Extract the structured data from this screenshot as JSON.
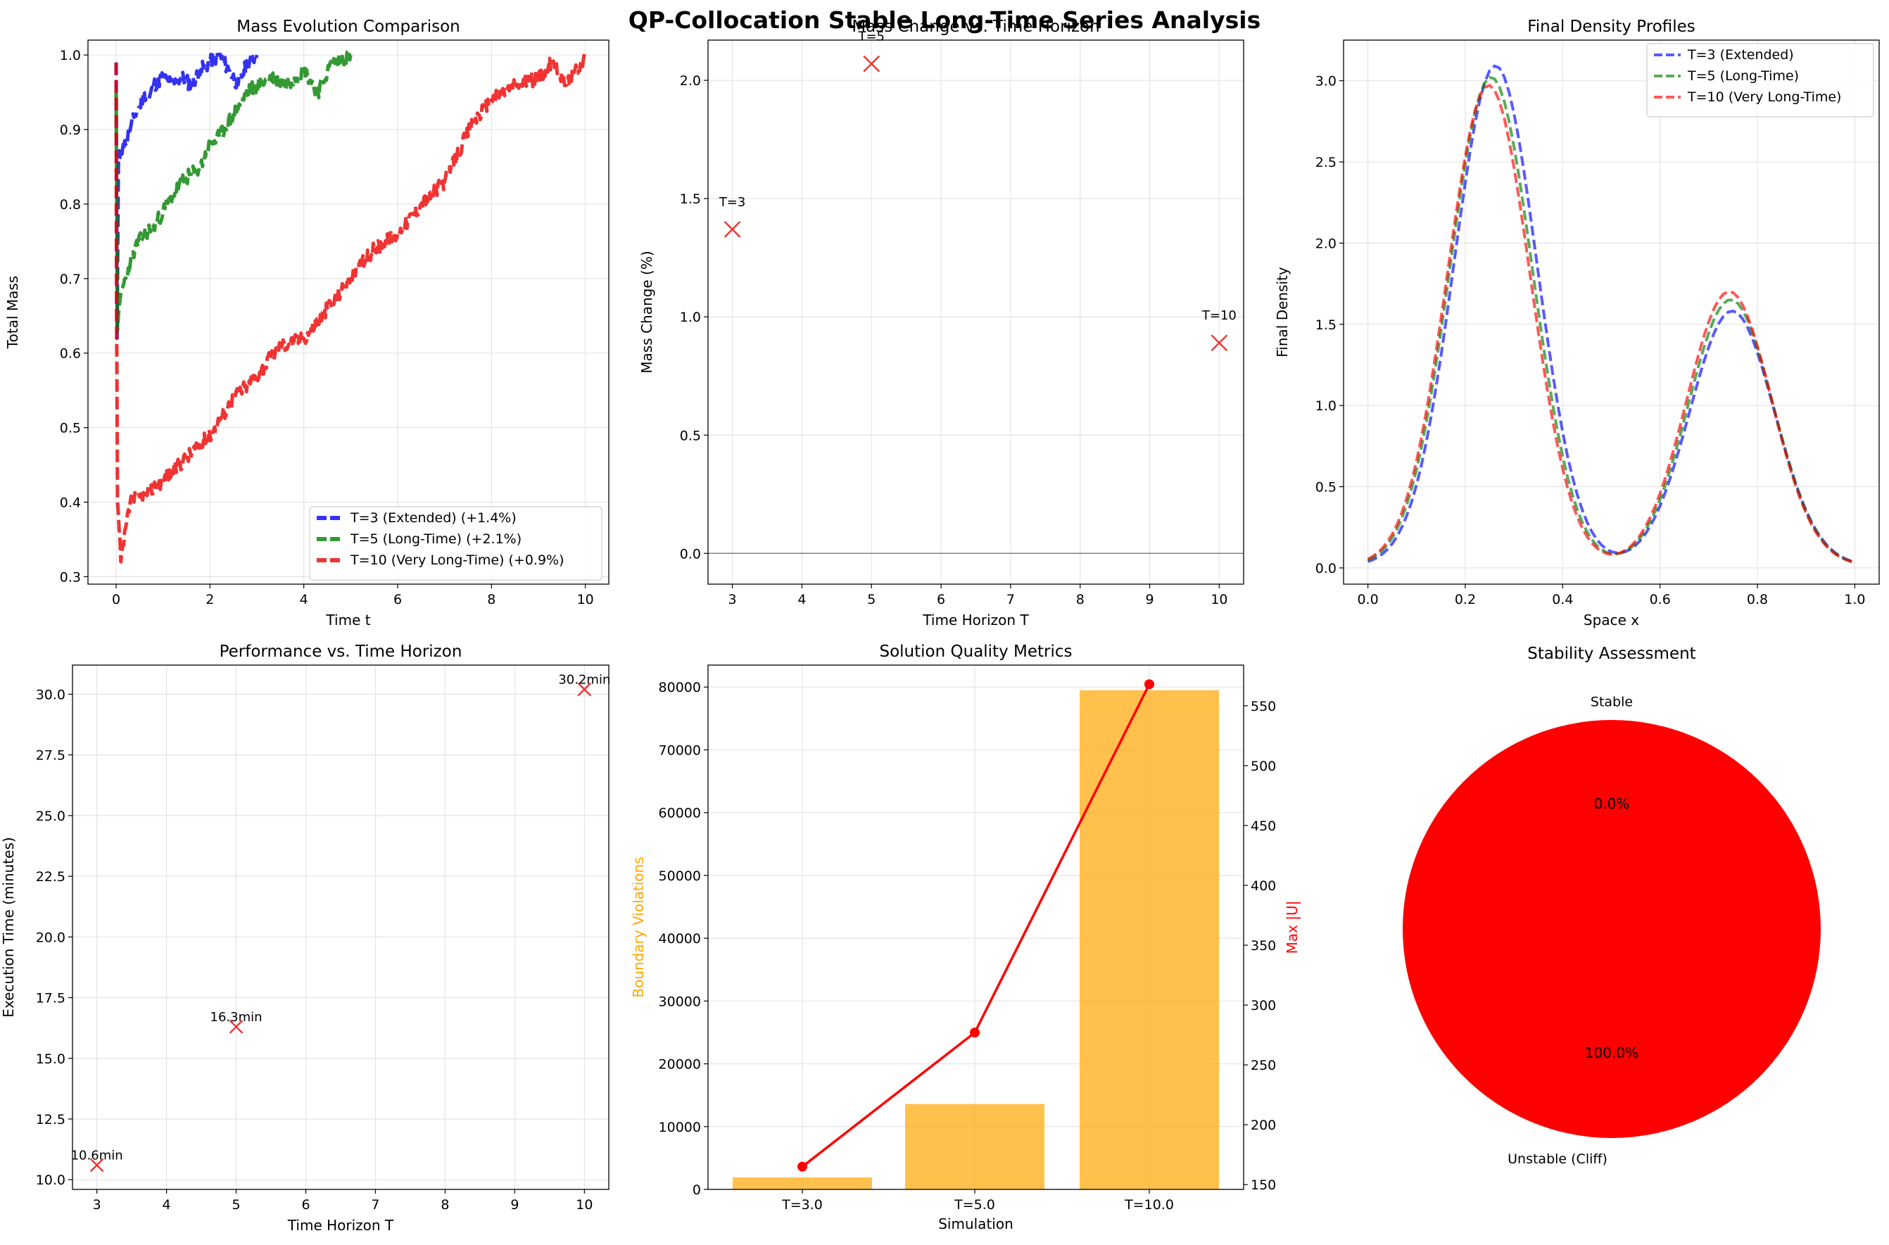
{
  "figure": {
    "suptitle": "QP-Collocation Stable Long-Time Series Analysis"
  },
  "chart_data": [
    {
      "id": "mass",
      "type": "line",
      "title": "Mass Evolution Comparison",
      "xlabel": "Time t",
      "ylabel": "Total Mass",
      "xlim": [
        -0.6,
        10.5
      ],
      "ylim": [
        0.29,
        1.02
      ],
      "xticks": [
        0,
        2,
        4,
        6,
        8,
        10
      ],
      "yticks": [
        0.3,
        0.4,
        0.5,
        0.6,
        0.7,
        0.8,
        0.9,
        1.0
      ],
      "grid": true,
      "legend": "lower right",
      "series": [
        {
          "name": "T=3 (Extended) (+1.4%)",
          "color": "#0000ee",
          "x": [
            0,
            0.02,
            0.05,
            0.1,
            0.15,
            0.2,
            0.3,
            0.4,
            0.5,
            0.6,
            0.7,
            0.8,
            1.0,
            1.2,
            1.4,
            1.6,
            1.8,
            2.0,
            2.2,
            2.4,
            2.6,
            2.8,
            3.0
          ],
          "y": [
            0.99,
            0.62,
            0.86,
            0.87,
            0.88,
            0.88,
            0.9,
            0.92,
            0.93,
            0.95,
            0.94,
            0.96,
            0.97,
            0.96,
            0.97,
            0.96,
            0.98,
            0.99,
            1.0,
            0.98,
            0.96,
            0.99,
            1.0
          ]
        },
        {
          "name": "T=5 (Long-Time) (+2.1%)",
          "color": "#008000",
          "x": [
            0,
            0.03,
            0.1,
            0.2,
            0.3,
            0.4,
            0.6,
            0.8,
            1.0,
            1.2,
            1.4,
            1.6,
            1.8,
            2.0,
            2.2,
            2.5,
            2.8,
            3.0,
            3.3,
            3.6,
            4.0,
            4.3,
            4.6,
            5.0
          ],
          "y": [
            0.95,
            0.63,
            0.68,
            0.7,
            0.72,
            0.74,
            0.76,
            0.77,
            0.79,
            0.81,
            0.83,
            0.84,
            0.85,
            0.88,
            0.89,
            0.92,
            0.95,
            0.96,
            0.97,
            0.96,
            0.98,
            0.95,
            0.99,
            1.0
          ]
        },
        {
          "name": "T=10 (Very Long-Time) (+0.9%)",
          "color": "#ee0000",
          "x": [
            0,
            0.01,
            0.03,
            0.1,
            0.3,
            0.6,
            1.0,
            1.5,
            2.0,
            2.5,
            3.0,
            3.5,
            4.0,
            4.5,
            5.0,
            5.5,
            6.0,
            6.5,
            7.0,
            7.3,
            7.6,
            8.0,
            8.5,
            9.0,
            9.3,
            9.6,
            10.0
          ],
          "y": [
            0.99,
            0.65,
            0.4,
            0.32,
            0.4,
            0.41,
            0.43,
            0.46,
            0.49,
            0.54,
            0.57,
            0.61,
            0.62,
            0.66,
            0.7,
            0.74,
            0.76,
            0.8,
            0.83,
            0.87,
            0.91,
            0.94,
            0.96,
            0.97,
            0.99,
            0.96,
            1.0
          ]
        }
      ]
    },
    {
      "id": "mass_change",
      "type": "scatter",
      "title": "Mass Change vs. Time Horizon",
      "xlabel": "Time Horizon T",
      "ylabel": "Mass Change (%)",
      "xlim": [
        2.65,
        10.35
      ],
      "ylim": [
        -0.13,
        2.17
      ],
      "xticks": [
        3,
        4,
        5,
        6,
        7,
        8,
        9,
        10
      ],
      "yticks": [
        0.0,
        0.5,
        1.0,
        1.5,
        2.0
      ],
      "grid": true,
      "reference_line_y": 0.0,
      "points": [
        {
          "x": 3,
          "y": 1.37,
          "label": "T=3"
        },
        {
          "x": 5,
          "y": 2.07,
          "label": "T=5"
        },
        {
          "x": 10,
          "y": 0.89,
          "label": "T=10"
        }
      ]
    },
    {
      "id": "density",
      "type": "line",
      "title": "Final Density Profiles",
      "xlabel": "Space x",
      "ylabel": "Final Density",
      "xlim": [
        -0.05,
        1.05
      ],
      "ylim": [
        -0.1,
        3.25
      ],
      "xticks": [
        0.0,
        0.2,
        0.4,
        0.6,
        0.8,
        1.0
      ],
      "yticks": [
        0.0,
        0.5,
        1.0,
        1.5,
        2.0,
        2.5,
        3.0
      ],
      "grid": true,
      "legend": "upper right",
      "series": [
        {
          "name": "T=3 (Extended)",
          "color": "#0000ff",
          "peak1": 3.08,
          "peak2": 1.57,
          "mu1": 0.262,
          "mu2": 0.748
        },
        {
          "name": "T=5 (Long-Time)",
          "color": "#008000",
          "peak1": 3.01,
          "peak2": 1.64,
          "mu1": 0.253,
          "mu2": 0.745
        },
        {
          "name": "T=10 (Very Long-Time)",
          "color": "#ff0000",
          "peak1": 2.96,
          "peak2": 1.69,
          "mu1": 0.248,
          "mu2": 0.742
        }
      ]
    },
    {
      "id": "performance",
      "type": "scatter",
      "title": "Performance vs. Time Horizon",
      "xlabel": "Time Horizon T",
      "ylabel": "Execution Time (minutes)",
      "xlim": [
        2.65,
        10.35
      ],
      "ylim": [
        9.6,
        31.2
      ],
      "xticks": [
        3,
        4,
        5,
        6,
        7,
        8,
        9,
        10
      ],
      "yticks": [
        10.0,
        12.5,
        15.0,
        17.5,
        20.0,
        22.5,
        25.0,
        27.5,
        30.0
      ],
      "grid": true,
      "points": [
        {
          "x": 3,
          "y": 10.6,
          "label": "10.6min"
        },
        {
          "x": 5,
          "y": 16.3,
          "label": "16.3min"
        },
        {
          "x": 10,
          "y": 30.2,
          "label": "30.2min"
        }
      ]
    },
    {
      "id": "quality",
      "type": "bar",
      "title": "Solution Quality Metrics",
      "xlabel": "Simulation",
      "ylabel": "Boundary Violations",
      "ylabel_right": "Max |U|",
      "categories": [
        "T=3.0",
        "T=5.0",
        "T=10.0"
      ],
      "bars": [
        1900,
        13600,
        79500
      ],
      "bar_color": "#ffa500",
      "line_values": [
        165,
        277,
        568
      ],
      "line_color": "#ff0000",
      "ylim": [
        0,
        83500
      ],
      "ylim_right": [
        146,
        584
      ],
      "yticks": [
        0,
        10000,
        20000,
        30000,
        40000,
        50000,
        60000,
        70000,
        80000
      ],
      "yticks_right": [
        150,
        200,
        250,
        300,
        350,
        400,
        450,
        500,
        550
      ],
      "grid": true
    },
    {
      "id": "stability",
      "type": "pie",
      "title": "Stability Assessment",
      "slices": [
        {
          "label": "Stable",
          "value": 0.0,
          "pct": "0.0%",
          "color": "#008000"
        },
        {
          "label": "Unstable (Cliff)",
          "value": 100.0,
          "pct": "100.0%",
          "color": "#ff0000"
        }
      ]
    }
  ]
}
